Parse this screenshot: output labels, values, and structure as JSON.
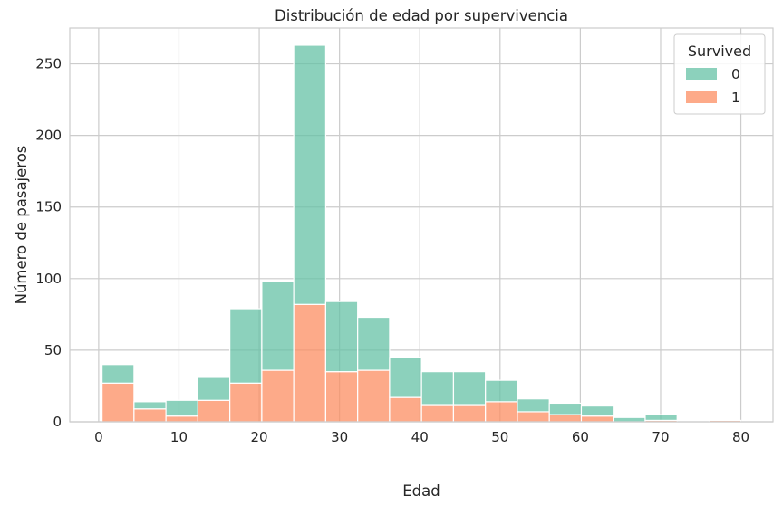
{
  "chart_data": {
    "type": "bar",
    "title": "Distribución de edad por supervivencia",
    "xlabel": "Edad",
    "ylabel": "Número de pasajeros",
    "xlim": [
      -3.6,
      84.0
    ],
    "ylim": [
      0,
      275
    ],
    "x_ticks": [
      "0",
      "10",
      "20",
      "30",
      "40",
      "50",
      "60",
      "70",
      "80"
    ],
    "y_ticks": [
      "0",
      "50",
      "100",
      "150",
      "200",
      "250"
    ],
    "grid": true,
    "stacked": true,
    "bin_edges": [
      0.42,
      4.4,
      8.38,
      12.36,
      16.34,
      20.32,
      24.3,
      28.28,
      32.26,
      36.24,
      40.22,
      44.2,
      48.18,
      52.16,
      56.14,
      60.12,
      64.1,
      68.08,
      72.06,
      76.04,
      80.0
    ],
    "series": [
      {
        "name": "0",
        "color": "#66c2a5",
        "values": [
          13,
          5,
          11,
          16,
          52,
          62,
          181,
          49,
          37,
          28,
          23,
          23,
          15,
          9,
          8,
          7,
          3,
          4,
          0,
          0
        ]
      },
      {
        "name": "1",
        "color": "#fc8d62",
        "values": [
          27,
          9,
          4,
          15,
          27,
          36,
          82,
          35,
          36,
          17,
          12,
          12,
          14,
          7,
          5,
          4,
          0,
          1,
          0,
          1
        ]
      }
    ],
    "legend": {
      "title": "Survived",
      "placement": "top-right",
      "entries": [
        "0",
        "1"
      ]
    }
  }
}
